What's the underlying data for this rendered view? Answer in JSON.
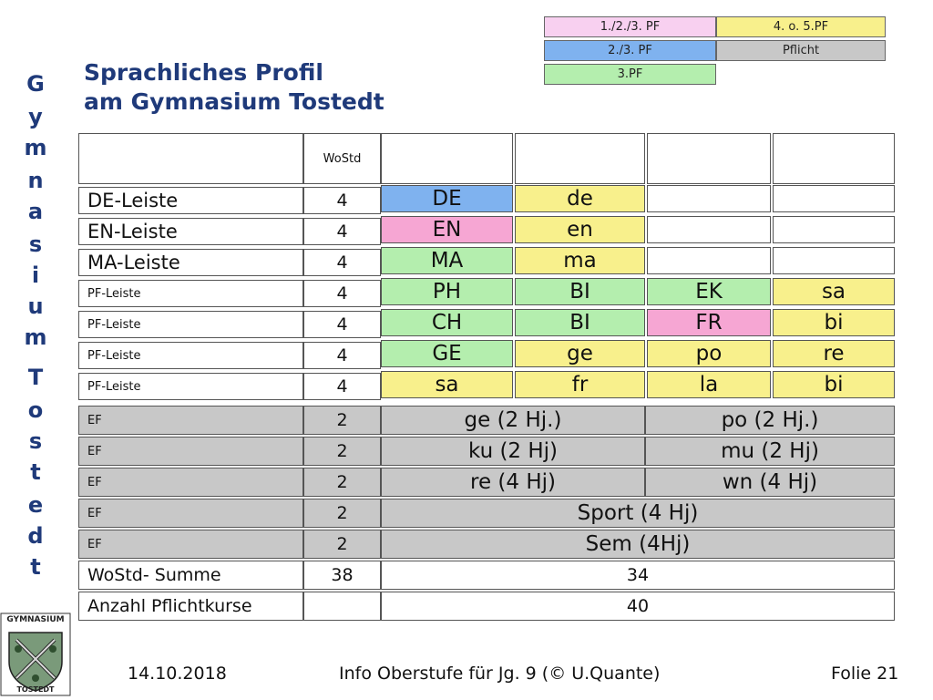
{
  "legend": {
    "pf123": "1./2./3. PF",
    "pf23": "2./3. PF",
    "pf3": "3.PF",
    "pf45": "4. o. 5.PF",
    "pflicht": "Pflicht",
    "colors": {
      "pf123": "#f8d0f0",
      "pf23": "#7fb2ef",
      "pf3": "#b4eeae",
      "pf45": "#f8f08c",
      "pflicht": "#c8c8c8"
    }
  },
  "sidebar": {
    "letters": [
      "G",
      "y",
      "m",
      "n",
      "a",
      "s",
      "i",
      "u",
      "m",
      "T",
      "o",
      "s",
      "t",
      "e",
      "d",
      "t"
    ]
  },
  "title": {
    "line1": "Sprachliches Profil",
    "line2": "am Gymnasium Tostedt"
  },
  "table": {
    "header_wostd": "WoStd",
    "rows": [
      {
        "label": "DE-Leiste",
        "wostd": "4",
        "cells": [
          "DE",
          "de",
          "",
          ""
        ]
      },
      {
        "label": "EN-Leiste",
        "wostd": "4",
        "cells": [
          "EN",
          "en",
          "",
          ""
        ]
      },
      {
        "label": "MA-Leiste",
        "wostd": "4",
        "cells": [
          "MA",
          "ma",
          "",
          ""
        ]
      },
      {
        "label": "PF-Leiste",
        "wostd": "4",
        "cells": [
          "PH",
          "BI",
          "EK",
          "sa"
        ]
      },
      {
        "label": "PF-Leiste",
        "wostd": "4",
        "cells": [
          "CH",
          "BI",
          "FR",
          "bi"
        ]
      },
      {
        "label": "PF-Leiste",
        "wostd": "4",
        "cells": [
          "GE",
          "ge",
          "po",
          "re"
        ]
      },
      {
        "label": "PF-Leiste",
        "wostd": "4",
        "cells": [
          "sa",
          "fr",
          "la",
          "bi"
        ]
      }
    ],
    "ef_rows": [
      {
        "label": "EF",
        "wostd": "2",
        "left": "ge (2 Hj.)",
        "right": "po (2 Hj.)"
      },
      {
        "label": "EF",
        "wostd": "2",
        "left": "ku (2 Hj)",
        "right": "mu (2 Hj)"
      },
      {
        "label": "EF",
        "wostd": "2",
        "left": "re (4 Hj)",
        "right": "wn (4 Hj)"
      },
      {
        "label": "EF",
        "wostd": "2",
        "full": "Sport (4 Hj)"
      },
      {
        "label": "EF",
        "wostd": "2",
        "full": "Sem (4Hj)"
      }
    ],
    "sum_row": {
      "label": "WoStd- Summe",
      "wostd": "38",
      "value": "34"
    },
    "count_row": {
      "label": "Anzahl Pflichtkurse",
      "wostd": "",
      "value": "40"
    }
  },
  "logo": {
    "top_text": "GYMNASIUM",
    "bottom_text": "TOSTEDT"
  },
  "footer": {
    "date": "14.10.2018",
    "center": "Info Oberstufe für Jg. 9 (© U.Quante)",
    "slide": "Folie 21"
  }
}
